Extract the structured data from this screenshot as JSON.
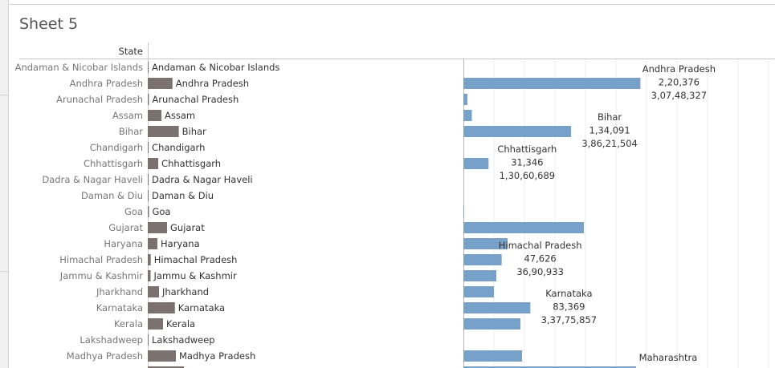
{
  "sheet": {
    "title": "Sheet 5"
  },
  "chart_data": {
    "type": "bar",
    "row_header": "State",
    "categories": [
      "Andaman & Nicobar Islands",
      "Andhra Pradesh",
      "Arunachal Pradesh",
      "Assam",
      "Bihar",
      "Chandigarh",
      "Chhattisgarh",
      "Dadra & Nagar Haveli",
      "Daman & Diu",
      "Goa",
      "Gujarat",
      "Haryana",
      "Himachal Pradesh",
      "Jammu & Kashmir",
      "Jharkhand",
      "Karnataka",
      "Kerala",
      "Lakshadweep",
      "Madhya Pradesh"
    ],
    "series": [
      {
        "color": "#7b716e",
        "label_mode": "category",
        "xlim": [
          0,
          380000000
        ],
        "values": [
          380581,
          30748327,
          1383727,
          17000000,
          38621504,
          1055450,
          13060689,
          343709,
          243247,
          1458545,
          24000000,
          12000000,
          3690933,
          3500000,
          14000000,
          33775857,
          19000000,
          64473,
          35000000
        ]
      },
      {
        "color": "#77a1c9",
        "label_mode": "annotated",
        "xlim": [
          0,
          400000
        ],
        "values": [
          0,
          220376,
          5000,
          10500,
          134091,
          0,
          31346,
          0,
          0,
          300,
          150000,
          55000,
          47626,
          41000,
          38000,
          83369,
          71000,
          0,
          73000
        ]
      }
    ],
    "annotations": [
      {
        "category": "Andhra Pradesh",
        "lines": [
          "Andhra Pradesh",
          "2,20,376",
          "3,07,48,327"
        ]
      },
      {
        "category": "Bihar",
        "lines": [
          "Bihar",
          "1,34,091",
          "3,86,21,504"
        ]
      },
      {
        "category": "Chhattisgarh",
        "lines": [
          "Chhattisgarh",
          "31,346",
          "1,30,60,689"
        ]
      },
      {
        "category": "Himachal Pradesh",
        "lines": [
          "Himachal Pradesh",
          "47,626",
          "36,90,933"
        ]
      },
      {
        "category": "Karnataka",
        "lines": [
          "Karnataka",
          "83,369",
          "3,37,75,857"
        ]
      }
    ],
    "partial_row": {
      "label": "Maharashtra",
      "values": [
        45000000,
        215000
      ]
    },
    "grid": true,
    "colors": {
      "row_label": "#777777",
      "bar_label": "#333333",
      "grid": "#ececec",
      "axis": "#b8b8b8"
    }
  }
}
